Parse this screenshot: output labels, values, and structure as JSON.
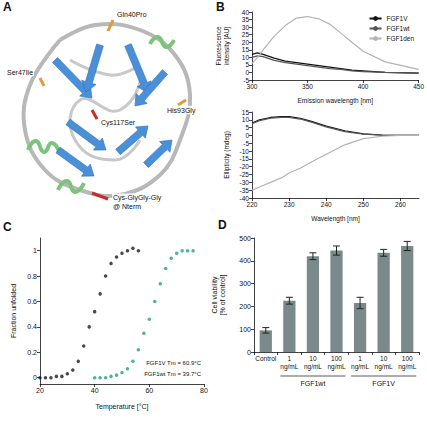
{
  "structure": {
    "panel": "A",
    "labels": [
      {
        "lines": [
          "Gln40Pro"
        ]
      },
      {
        "lines": [
          "Ser47Ile"
        ]
      },
      {
        "lines": [
          "His93Gly"
        ]
      },
      {
        "lines": [
          "Cys117Ser"
        ]
      },
      {
        "lines": [
          "Cys-GlyGly-Gly",
          "@ Nterm"
        ]
      }
    ]
  },
  "chart_data": [
    {
      "panel": "B",
      "type": "line",
      "x_label": "Emission wavelength [nm]",
      "y_label": "Fluorescence intensity [AU]",
      "x": [
        300,
        305,
        310,
        320,
        330,
        340,
        350,
        360,
        370,
        380,
        390,
        400,
        420,
        450
      ],
      "series": [
        {
          "name": "FGF1V",
          "color": "#111111",
          "values": [
            12,
            13,
            12,
            9.5,
            7.5,
            6.5,
            5.5,
            4.5,
            3.5,
            2.5,
            1.5,
            1,
            0,
            -0.5
          ]
        },
        {
          "name": "FGF1wt",
          "color": "#555555",
          "values": [
            10,
            11,
            10.5,
            8,
            6.5,
            5.5,
            4.5,
            3.5,
            2.5,
            2,
            1,
            0.5,
            0,
            -0.5
          ]
        },
        {
          "name": "FGF1den",
          "color": "#b3b3b3",
          "values": [
            6,
            10,
            15,
            24,
            31,
            36,
            37,
            35.5,
            32,
            26,
            20,
            14,
            7,
            2
          ]
        }
      ],
      "xlim": [
        300,
        450
      ],
      "xticks": [
        300,
        350,
        400,
        450
      ],
      "ylim": [
        -5,
        40
      ],
      "yticks": [
        -5,
        0,
        5,
        10,
        15,
        20,
        25,
        30,
        35,
        40
      ],
      "grid": false,
      "legend": "top-right"
    },
    {
      "type": "line",
      "x_label": "Wavelength [nm]",
      "y_label": "Ellipticity (mdeg)",
      "x": [
        220,
        222,
        225,
        228,
        230,
        233,
        236,
        240,
        245,
        250,
        255,
        260,
        265
      ],
      "series": [
        {
          "name": "FGF1V",
          "color": "#111111",
          "values": [
            8,
            10,
            11.5,
            12,
            12,
            11,
            9,
            6,
            3,
            1,
            0.3,
            0,
            0
          ]
        },
        {
          "name": "FGF1wt",
          "color": "#555555",
          "values": [
            7.5,
            9.5,
            11,
            11.5,
            11.5,
            10.5,
            8.5,
            5.5,
            2.5,
            0.8,
            0.2,
            0,
            0
          ]
        },
        {
          "name": "FGF1den",
          "color": "#b3b3b3",
          "values": [
            -35,
            -33,
            -30,
            -27,
            -24,
            -21,
            -17,
            -12,
            -6,
            -2,
            -0.5,
            0,
            0
          ]
        }
      ],
      "xlim": [
        220,
        265
      ],
      "xticks": [
        220,
        230,
        240,
        250,
        260
      ],
      "ylim": [
        -40,
        15
      ],
      "yticks": [
        -40,
        -35,
        -30,
        -25,
        -20,
        -15,
        -10,
        -5,
        0,
        5,
        10,
        15
      ],
      "grid": false
    },
    {
      "panel": "C",
      "type": "scatter",
      "marker": "circle",
      "x_label": "Temperature [°C]",
      "y_label": "Fraction unfolded",
      "series": [
        {
          "color": "#1a1a1a",
          "x": [
            20,
            22,
            24,
            26,
            28,
            30,
            32,
            34,
            36,
            38,
            40,
            42,
            44,
            46,
            48,
            50,
            52,
            54,
            56
          ],
          "values": [
            0,
            0,
            0,
            0.01,
            0.01,
            0.03,
            0.06,
            0.13,
            0.25,
            0.4,
            0.52,
            0.66,
            0.8,
            0.9,
            0.95,
            0.98,
            1.0,
            1.02,
            1.0
          ]
        },
        {
          "color": "#1f9e96",
          "x": [
            40,
            42,
            44,
            46,
            48,
            50,
            52,
            54,
            56,
            58,
            60,
            62,
            64,
            66,
            68,
            70,
            72,
            74,
            76
          ],
          "values": [
            0,
            0,
            0,
            0.01,
            0.02,
            0.04,
            0.07,
            0.13,
            0.22,
            0.35,
            0.46,
            0.6,
            0.74,
            0.86,
            0.94,
            0.98,
            1.0,
            1.0,
            1.0
          ]
        }
      ],
      "annotations": [
        "FGF1V Tm = 60.9°C",
        "FGF1wt Tm = 39.7°C"
      ],
      "xlim": [
        20,
        80
      ],
      "xticks": [
        20,
        40,
        60,
        80
      ],
      "ylim": [
        -0.05,
        1.1
      ],
      "yticks": [
        0,
        0.2,
        0.4,
        0.6,
        0.8,
        1
      ],
      "grid": false
    },
    {
      "panel": "D",
      "type": "bar",
      "y_label": "Cell viability [% of control]",
      "categories": [
        "Control",
        "1 ng/mL",
        "10 ng/mL",
        "100 ng/mL",
        "1 ng/mL",
        "10 ng/mL",
        "100 ng/mL"
      ],
      "groups": [
        null,
        "FGF1wt",
        "FGF1wt",
        "FGF1wt",
        "FGF1V",
        "FGF1V",
        "FGF1V"
      ],
      "values": [
        95,
        225,
        420,
        445,
        215,
        435,
        465
      ],
      "errors": [
        12,
        15,
        15,
        20,
        25,
        15,
        20
      ],
      "color": "#7a8a8a",
      "ylim": [
        0,
        500
      ],
      "yticks": [
        0,
        100,
        200,
        300,
        400,
        500
      ],
      "grid": false
    }
  ]
}
